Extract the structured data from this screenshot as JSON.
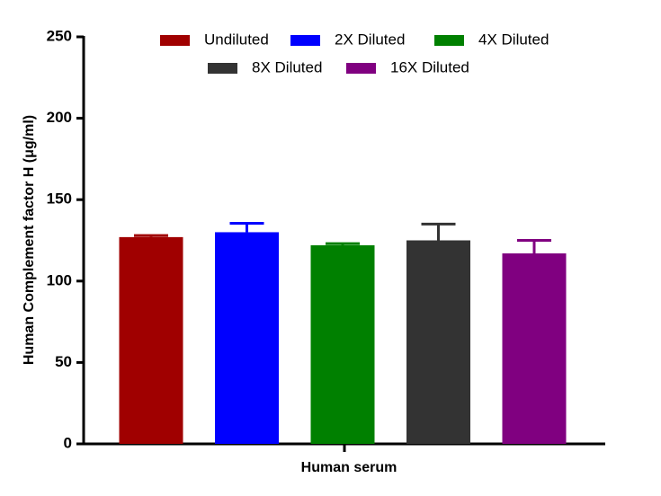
{
  "chart_data": {
    "type": "bar",
    "x_label": "Human serum",
    "y_label": "Human Complement factor H (μg/ml)",
    "categories": [
      "Human serum"
    ],
    "series": [
      {
        "name": "Undiluted",
        "color": "#a00000",
        "values": [
          127
        ],
        "errors": [
          1
        ]
      },
      {
        "name": "2X Diluted",
        "color": "#0000ff",
        "values": [
          130
        ],
        "errors": [
          5.5
        ]
      },
      {
        "name": "4X Diluted",
        "color": "#008000",
        "values": [
          122
        ],
        "errors": [
          1
        ]
      },
      {
        "name": "8X Diluted",
        "color": "#333333",
        "values": [
          125
        ],
        "errors": [
          10
        ]
      },
      {
        "name": "16X Diluted",
        "color": "#800080",
        "values": [
          117
        ],
        "errors": [
          8
        ]
      }
    ],
    "ylim": [
      0,
      250
    ],
    "yticks": [
      0,
      50,
      100,
      150,
      200,
      250
    ],
    "grid": false,
    "legend": "top"
  }
}
